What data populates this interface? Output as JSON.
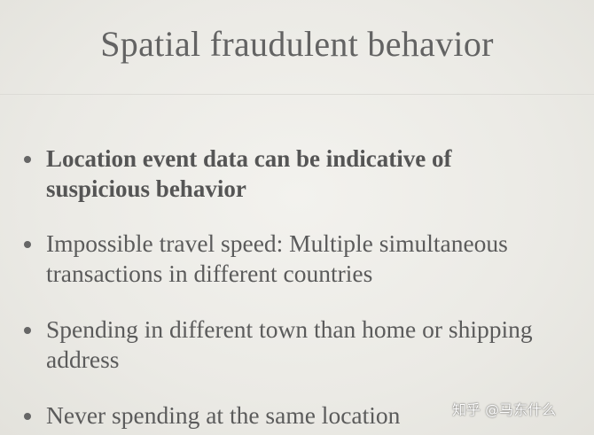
{
  "slide": {
    "title": "Spatial fraudulent behavior",
    "bullets": [
      {
        "line1": "Location event data can be indicative of",
        "line2": "suspicious behavior",
        "bold": true
      },
      {
        "line1": "Impossible travel speed: Multiple simultaneous",
        "line2": "transactions in different countries",
        "bold": false
      },
      {
        "line1": "Spending in different town than home or shipping",
        "line2": "address",
        "bold": false
      },
      {
        "line1": "Never spending at the same location",
        "line2": "",
        "bold": false
      }
    ]
  },
  "watermark": "知乎 @马东什么",
  "colors": {
    "background": "#ecebe6",
    "text": "#5b5b5b",
    "bullet_dot": "#666666"
  }
}
